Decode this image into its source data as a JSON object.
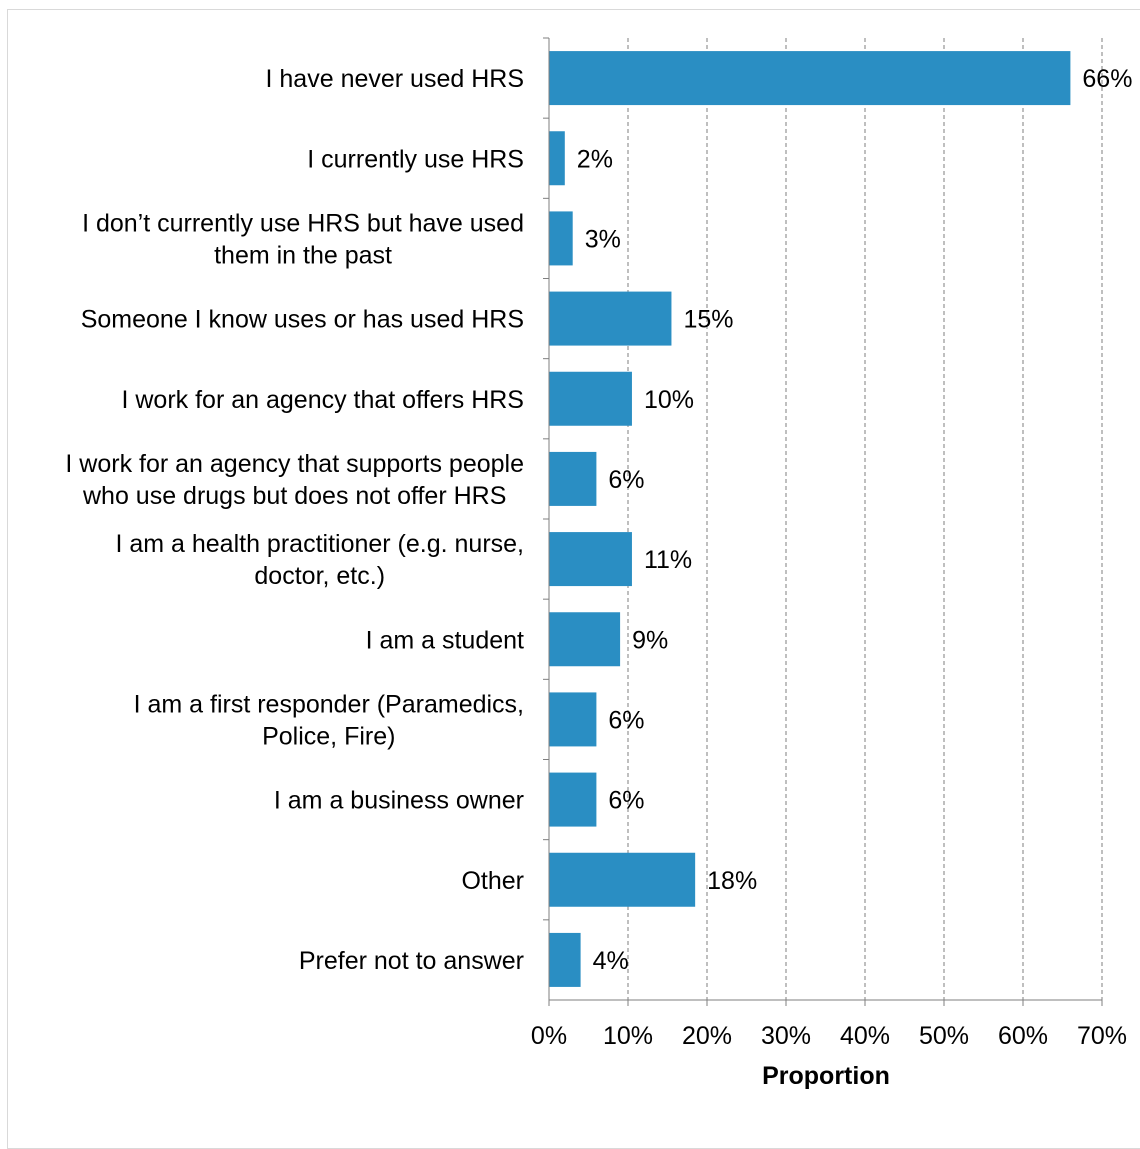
{
  "chart_data": {
    "type": "bar",
    "orientation": "horizontal",
    "categories": [
      [
        "I have never used HRS"
      ],
      [
        "I currently use HRS"
      ],
      [
        "I don’t currently use HRS but have used",
        "them in the past"
      ],
      [
        "Someone I know uses or has used HRS"
      ],
      [
        "I work for an agency that offers HRS"
      ],
      [
        "I work for an agency that supports people",
        "who use drugs but does not offer HRS"
      ],
      [
        "I am a health practitioner (e.g. nurse,",
        "doctor, etc.)"
      ],
      [
        "I am a student"
      ],
      [
        "I am a first responder (Paramedics,",
        "Police, Fire)"
      ],
      [
        "I am a business owner"
      ],
      [
        "Other"
      ],
      [
        "Prefer not to answer"
      ]
    ],
    "values": [
      66,
      2,
      3,
      15.5,
      10.5,
      6,
      10.5,
      9,
      6,
      6,
      18.5,
      4
    ],
    "value_labels": [
      "66%",
      "2%",
      "3%",
      "15%",
      "10%",
      "6%",
      "11%",
      "9%",
      "6%",
      "6%",
      "18%",
      "4%"
    ],
    "xlabel": "Proportion",
    "xlim": [
      0,
      70
    ],
    "x_ticks": [
      "0%",
      "10%",
      "20%",
      "30%",
      "40%",
      "50%",
      "60%",
      "70%"
    ],
    "grid": "vertical dashed",
    "legend": "none",
    "bar_color": "#2a8ec3"
  }
}
